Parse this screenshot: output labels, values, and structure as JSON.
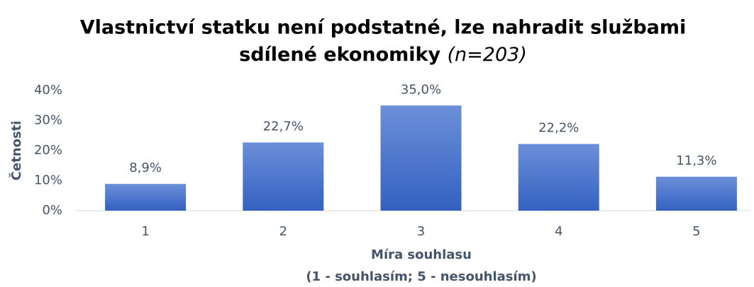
{
  "chart_data": {
    "type": "bar",
    "title": [
      "Vlastnictví statku není podstatné, lze nahradit službami",
      "sdílené ekonomiky"
    ],
    "title_note": "(n=203)",
    "ylabel": "Četnosti",
    "xlabel": [
      "Míra souhlasu",
      "(1 - souhlasím; 5 - nesouhlasím)"
    ],
    "categories": [
      "1",
      "2",
      "3",
      "4",
      "5"
    ],
    "values": [
      8.9,
      22.7,
      35.0,
      22.2,
      11.3
    ],
    "value_labels": [
      "8,9%",
      "22,7%",
      "35,0%",
      "22,2%",
      "11,3%"
    ],
    "color": "#4472c4",
    "ylim": [
      0,
      40
    ],
    "yticks": [
      {
        "value": 0,
        "label": "0%"
      },
      {
        "value": 10,
        "label": "10%"
      },
      {
        "value": 20,
        "label": "20%"
      },
      {
        "value": 30,
        "label": "30%"
      },
      {
        "value": 40,
        "label": "40%"
      }
    ],
    "grid": false
  }
}
